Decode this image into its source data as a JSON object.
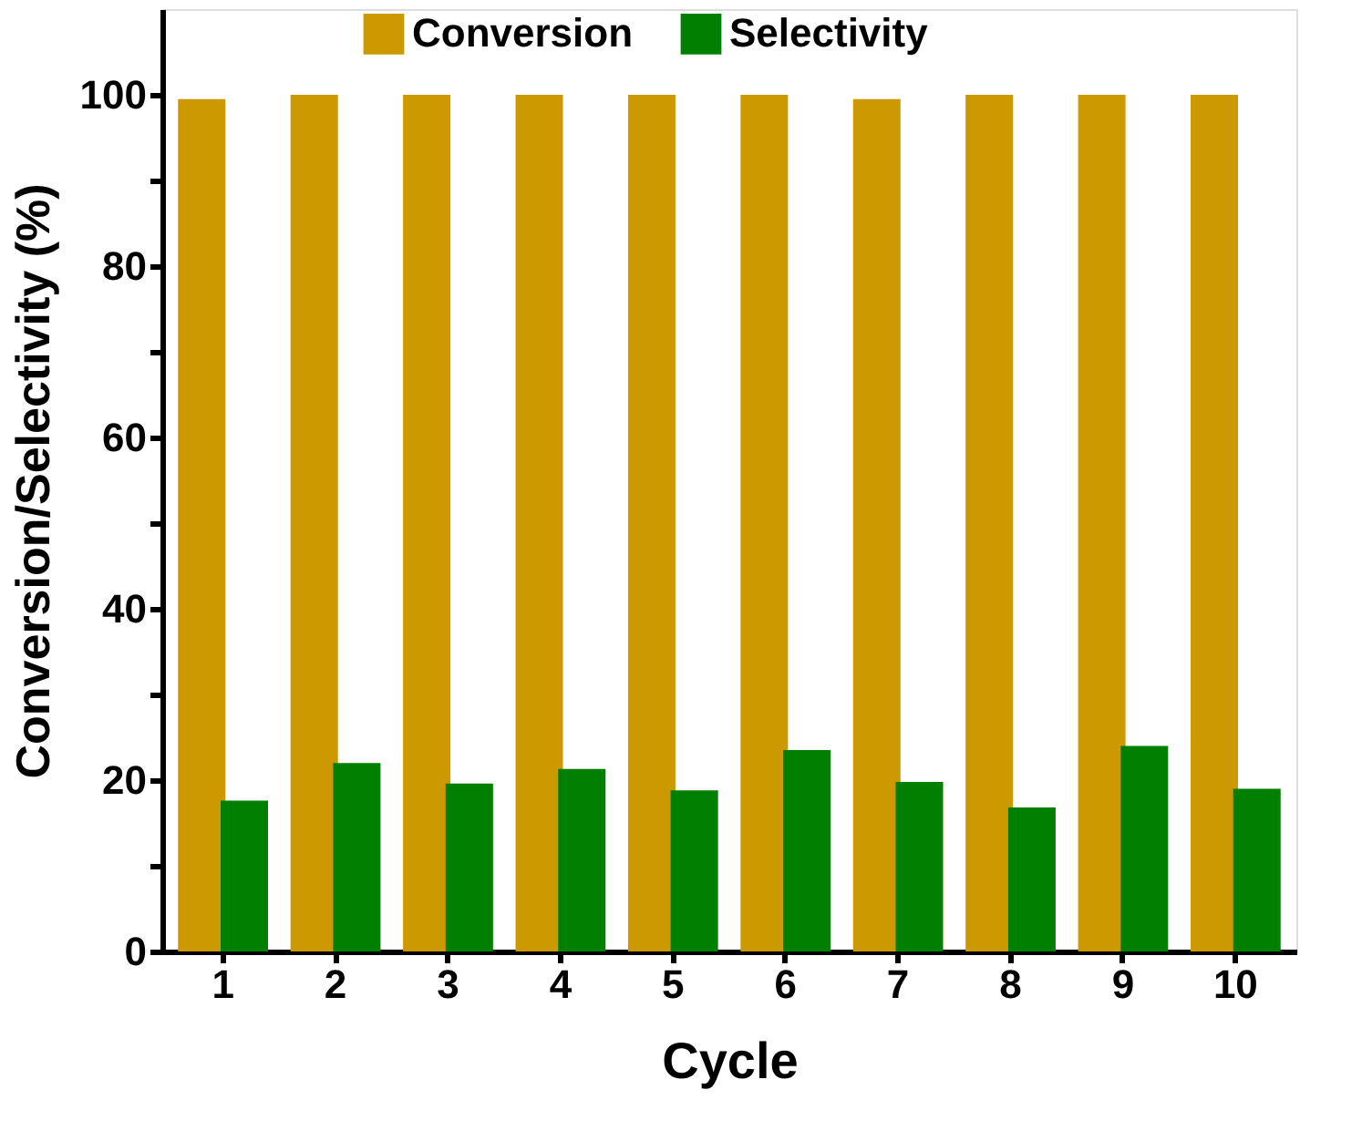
{
  "chart_data": {
    "type": "bar",
    "xlabel": "Cycle",
    "ylabel": "Conversion/Selectivity (%)",
    "categories": [
      "1",
      "2",
      "3",
      "4",
      "5",
      "6",
      "7",
      "8",
      "9",
      "10"
    ],
    "series": [
      {
        "name": "Conversion",
        "color": "#cc9900",
        "values": [
          99.5,
          100,
          100,
          100,
          100,
          100,
          99.5,
          100,
          100,
          100
        ]
      },
      {
        "name": "Selectivity",
        "color": "#007f00",
        "values": [
          17.6,
          22.0,
          19.6,
          21.3,
          18.8,
          23.5,
          19.8,
          16.8,
          24.0,
          19.0
        ]
      }
    ],
    "ylim": [
      0,
      110
    ],
    "yticks": [
      0,
      {
        "value": 10,
        "label": null
      },
      20,
      {
        "value": 30,
        "label": null
      },
      40,
      {
        "value": 50,
        "label": null
      },
      60,
      {
        "value": 70,
        "label": null
      },
      80,
      {
        "value": 90,
        "label": null
      },
      100
    ],
    "legend": "top",
    "grid": false
  }
}
